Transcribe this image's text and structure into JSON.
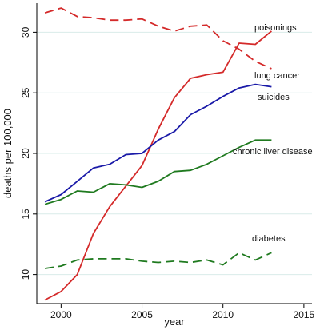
{
  "chart_data": {
    "type": "line",
    "xlabel": "year",
    "ylabel": "deaths per 100,000",
    "xlim": [
      1998.5,
      2015.5
    ],
    "ylim": [
      7.6,
      32.4
    ],
    "xticks": [
      2000,
      2005,
      2010,
      2015
    ],
    "yticks": [
      10,
      15,
      20,
      25,
      30
    ],
    "grid": "horizontal",
    "legend": "none",
    "colors": {
      "red": "#d42a2a",
      "blue": "#1a1aa8",
      "green": "#1f7a1f"
    },
    "series": [
      {
        "name": "poisonings",
        "color": "red",
        "style": "solid",
        "x": [
          1999,
          2000,
          2001,
          2002,
          2003,
          2004,
          2005,
          2006,
          2007,
          2008,
          2009,
          2010,
          2011,
          2012,
          2013
        ],
        "values": [
          7.9,
          8.6,
          10.0,
          13.4,
          15.6,
          17.3,
          19.0,
          22.0,
          24.6,
          26.2,
          26.5,
          26.7,
          29.1,
          29.0,
          30.1
        ]
      },
      {
        "name": "lung cancer",
        "color": "red",
        "style": "dashed",
        "x": [
          1999,
          2000,
          2001,
          2002,
          2003,
          2004,
          2005,
          2006,
          2007,
          2008,
          2009,
          2010,
          2011,
          2012,
          2013
        ],
        "values": [
          31.6,
          32.0,
          31.3,
          31.2,
          31.0,
          31.0,
          31.1,
          30.5,
          30.1,
          30.5,
          30.6,
          29.3,
          28.6,
          27.6,
          27.0
        ]
      },
      {
        "name": "suicides",
        "color": "blue",
        "style": "solid",
        "x": [
          1999,
          2000,
          2001,
          2002,
          2003,
          2004,
          2005,
          2006,
          2007,
          2008,
          2009,
          2010,
          2011,
          2012,
          2013
        ],
        "values": [
          16.0,
          16.6,
          17.7,
          18.8,
          19.1,
          19.9,
          20.0,
          21.1,
          21.8,
          23.2,
          23.9,
          24.7,
          25.4,
          25.7,
          25.5
        ]
      },
      {
        "name": "chronic liver disease",
        "color": "green",
        "style": "solid",
        "x": [
          1999,
          2000,
          2001,
          2002,
          2003,
          2004,
          2005,
          2006,
          2007,
          2008,
          2009,
          2010,
          2011,
          2012,
          2013
        ],
        "values": [
          15.8,
          16.2,
          16.9,
          16.8,
          17.5,
          17.4,
          17.2,
          17.7,
          18.5,
          18.6,
          19.1,
          19.8,
          20.5,
          21.1,
          21.1
        ]
      },
      {
        "name": "diabetes",
        "color": "green",
        "style": "dashed",
        "x": [
          1999,
          2000,
          2001,
          2002,
          2003,
          2004,
          2005,
          2006,
          2007,
          2008,
          2009,
          2010,
          2011,
          2012,
          2013
        ],
        "values": [
          10.5,
          10.7,
          11.2,
          11.3,
          11.3,
          11.3,
          11.1,
          11.0,
          11.1,
          11.0,
          11.2,
          10.8,
          11.8,
          11.2,
          11.8
        ]
      }
    ]
  }
}
